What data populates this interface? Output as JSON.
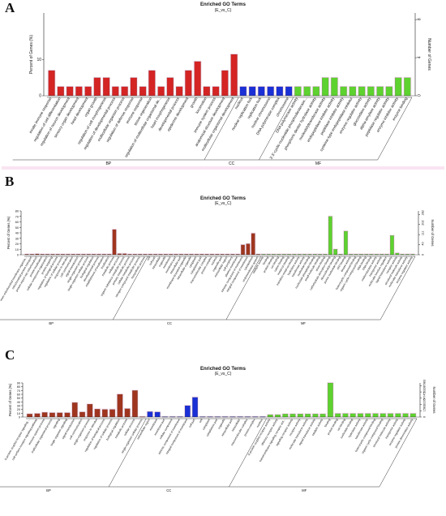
{
  "panels": [
    {
      "letter": "A",
      "title": "Enriched GO Terms",
      "subtitle": "(E_vs_C)"
    },
    {
      "letter": "B",
      "title": "Enriched GO Terms",
      "subtitle": "(E_vs_C)"
    },
    {
      "letter": "C",
      "title": "Enriched GO Terms",
      "subtitle": "(E_vs_C)"
    }
  ],
  "chart_data": [
    {
      "type": "bar",
      "title": "Enriched GO Terms",
      "subtitle": "(E_vs_C)",
      "ylabel": "Percent of Genes (%)",
      "y2label": "Number of Genes",
      "ylim": [
        0,
        23
      ],
      "yticks": [
        0,
        10
      ],
      "y2ticks": [
        0,
        4,
        8
      ],
      "colors": {
        "BP": "#d42424",
        "CC": "#1a2fd6",
        "MF": "#5ed22f"
      },
      "groups": [
        "BP",
        "CC",
        "MF"
      ],
      "categories": [
        "innate immune response",
        "regulation of cell differentiation",
        "regulation of neuron development",
        "sensory organ development",
        "head development",
        "organ growth",
        "regulation of cell morphogenesis",
        "regulation of developmental process",
        "multicellular organism process",
        "regulation of defense response",
        "immune response",
        "tissue regeneration",
        "regulation of multicellular organismal development",
        "heart morphogenesis",
        "developmental process",
        "epidermis development",
        "growth",
        "locomotion",
        "immune system process",
        "anatomical structure development",
        "multicellular organismal development",
        "nucleus",
        "nuclear replication fork",
        "replication fork",
        "nuclear chromosome",
        "DNA polymerase complex",
        "chromosome",
        "DNA polymerase activity",
        "3',5'-cyclic-nucleotide phosphodiesterase activity",
        "phosphoric diester hydrolase activity",
        "nucleotidyltransferase activity",
        "endopeptidase inhibitor activity",
        "peptidase inhibitor activity",
        "cysteine-type endopeptidase inhibitor",
        "enzyme regulator activity",
        "glucosidase activity",
        "alpha-amylase activity",
        "peptidase regulator activity",
        "enzyme inhibitor activity",
        "enzyme binding"
      ],
      "group_of": [
        "BP",
        "BP",
        "BP",
        "BP",
        "BP",
        "BP",
        "BP",
        "BP",
        "BP",
        "BP",
        "BP",
        "BP",
        "BP",
        "BP",
        "BP",
        "BP",
        "BP",
        "BP",
        "BP",
        "BP",
        "BP",
        "CC",
        "CC",
        "CC",
        "CC",
        "CC",
        "CC",
        "MF",
        "MF",
        "MF",
        "MF",
        "MF",
        "MF",
        "MF",
        "MF",
        "MF",
        "MF",
        "MF",
        "MF",
        "MF"
      ],
      "values": [
        7,
        2.5,
        2.5,
        2.5,
        2.5,
        5,
        5,
        2.5,
        2.5,
        5,
        2.5,
        7,
        2.5,
        5,
        2.5,
        7,
        9.5,
        2.5,
        2.5,
        7,
        11.5,
        2.5,
        2.5,
        2.5,
        2.5,
        2.5,
        2.5,
        2.5,
        2.5,
        2.5,
        5,
        5,
        2.5,
        2.5,
        2.5,
        2.5,
        2.5,
        2.5,
        5,
        5
      ]
    },
    {
      "type": "bar",
      "title": "Enriched GO Terms",
      "subtitle": "(E_vs_C)",
      "ylabel": "Percent of Genes (%)",
      "y2label": "Number of Genes",
      "ylim": [
        0,
        80
      ],
      "yticks": [
        0,
        10,
        20,
        30,
        40,
        50,
        60,
        70,
        80
      ],
      "y2ticks": [
        0,
        40,
        111,
        202,
        282
      ],
      "colors": {
        "BP": "#a0351f",
        "CC": "#a0351f",
        "MF": "#5ed22f"
      },
      "groups": [
        "BP",
        "CC",
        "MF"
      ],
      "categories": [
        "inner mitochondrial membrane organization",
        "mitochondrial protein transport",
        "protein import into mitochondrion",
        "protein localization",
        "cellular component organization",
        "protein targeting",
        "regulation of biological process",
        "regulation of cellular process",
        "response to stimulus",
        "cell communication",
        "signal transduction",
        "single-organism process",
        "single-organism cellular process",
        "biological regulation",
        "developmental process",
        "establishment of localization",
        "localization",
        "metabolic process",
        "cellular process",
        "organic substance metabolic process",
        "primary metabolic process",
        "cellular metabolic process",
        "nitrogen compound metabolic process",
        "biosynthetic process",
        "cell",
        "cell part",
        "intracellular",
        "organelle",
        "membrane",
        "membrane part",
        "intracellular part",
        "membrane-bounded organelle",
        "intracellular organelle",
        "cytoplasm",
        "cytoplasmic part",
        "macromolecular complex",
        "protein complex",
        "nucleus",
        "organelle part",
        "extracellular region",
        "cell periphery",
        "plasma membrane",
        "intrinsic component of membrane",
        "integral component of membrane",
        "cytoskeleton",
        "endomembrane system",
        "catalytic activity",
        "binding",
        "protein binding",
        "ion binding",
        "cation binding",
        "metal ion binding",
        "transition metal ion binding",
        "hydrolase activity",
        "transferase activity",
        "nucleotide binding",
        "nucleoside phosphate binding",
        "small molecule binding",
        "anion binding",
        "carbohydrate derivative binding",
        "ribonucleotide binding",
        "purine nucleotide binding",
        "ATP binding",
        "kinase activity",
        "heterocyclic compound binding",
        "organic cyclic compound binding",
        "RNA binding",
        "DNA binding",
        "oxidoreductase activity",
        "transporter activity",
        "molecular function regulator",
        "signal transducer activity",
        "receptor activity",
        "structural molecule activity",
        "molecular transducer activity",
        "enzyme regulator activity"
      ],
      "group_of": [
        "BP",
        "BP",
        "BP",
        "BP",
        "BP",
        "BP",
        "BP",
        "BP",
        "BP",
        "BP",
        "BP",
        "BP",
        "BP",
        "BP",
        "BP",
        "BP",
        "BP",
        "BP",
        "BP",
        "BP",
        "BP",
        "BP",
        "BP",
        "BP",
        "CC",
        "CC",
        "CC",
        "CC",
        "CC",
        "CC",
        "CC",
        "CC",
        "CC",
        "CC",
        "CC",
        "CC",
        "CC",
        "CC",
        "CC",
        "CC",
        "CC",
        "CC",
        "CC",
        "CC",
        "CC",
        "CC",
        "MF",
        "MF",
        "MF",
        "MF",
        "MF",
        "MF",
        "MF",
        "MF",
        "MF",
        "MF",
        "MF",
        "MF",
        "MF",
        "MF",
        "MF",
        "MF",
        "MF",
        "MF",
        "MF",
        "MF",
        "MF",
        "MF",
        "MF",
        "MF",
        "MF",
        "MF",
        "MF",
        "MF",
        "MF",
        "MF"
      ],
      "values": [
        1,
        1,
        1.5,
        1,
        1,
        1,
        1,
        1,
        1,
        1,
        1,
        1,
        1,
        1,
        1,
        1,
        1,
        46,
        2,
        2,
        1,
        1,
        1,
        1,
        1,
        1,
        1,
        1,
        1,
        1,
        1,
        1,
        1,
        1,
        1,
        1,
        1,
        1,
        1,
        1,
        1,
        1,
        18,
        20,
        39,
        1,
        1,
        1,
        1,
        1,
        1,
        1,
        1,
        1,
        1,
        1,
        1,
        1,
        1,
        70,
        10,
        1,
        43,
        1,
        1,
        1,
        1,
        1,
        1,
        1,
        1,
        35,
        3,
        1,
        1,
        1
      ],
      "cc_bars_note": ""
    },
    {
      "type": "bar",
      "title": "Enriched GO Terms",
      "subtitle": "(E_vs_C)",
      "ylabel": "Percent of Genes (%)",
      "y2label": "Number of Genes",
      "ylim": [
        0,
        90
      ],
      "yticks": [
        0,
        10,
        20,
        30,
        40,
        50,
        60,
        70,
        80,
        90
      ],
      "y2ticks": [
        0,
        1583,
        3165,
        4745,
        6328,
        7983
      ],
      "colors": {
        "BP": "#a0351f",
        "CC": "#1a2fd6",
        "MF": "#5ed22f"
      },
      "groups": [
        "BP",
        "CC",
        "MF"
      ],
      "categories": [
        "G-protein coupled receptor signaling pathway",
        "cell surface receptor signaling pathway",
        "immune system process",
        "multicellular organismal process",
        "signaling",
        "single organism signaling",
        "signal transduction",
        "cell communication",
        "single-organism process",
        "response to stimulus",
        "regulation of biological process",
        "regulation of cellular process",
        "biological regulation",
        "metabolic process",
        "cellular process",
        "single-organism cellular process",
        "extracellular region",
        "membrane",
        "membrane part",
        "cellular component",
        "intrinsic component of membrane",
        "integral component of membrane",
        "cell part",
        "cell",
        "cytoplasm",
        "cytoplasmic part",
        "organelle",
        "intracellular part",
        "intracellular",
        "macromolecular complex",
        "protein complex",
        "nucleus",
        "G-protein coupled receptor activity",
        "olfactory receptor activity",
        "transmembrane signaling receptor activity",
        "signaling receptor activity",
        "receptor activity",
        "molecular transducer activity",
        "signal transducer activity",
        "catalytic activity",
        "binding",
        "protein binding",
        "ion binding",
        "nucleotide binding",
        "hydrolase activity",
        "transferase activity",
        "heterocyclic compound binding",
        "organic cyclic compound binding",
        "structural molecule activity",
        "transporter activity",
        "enzyme regulator activity",
        "protein dimerization activity"
      ],
      "group_of": [
        "BP",
        "BP",
        "BP",
        "BP",
        "BP",
        "BP",
        "BP",
        "BP",
        "BP",
        "BP",
        "BP",
        "BP",
        "BP",
        "BP",
        "BP",
        "BP",
        "CC",
        "CC",
        "CC",
        "CC",
        "CC",
        "CC",
        "CC",
        "CC",
        "CC",
        "CC",
        "CC",
        "CC",
        "CC",
        "CC",
        "CC",
        "CC",
        "MF",
        "MF",
        "MF",
        "MF",
        "MF",
        "MF",
        "MF",
        "MF",
        "MF",
        "MF",
        "MF",
        "MF",
        "MF",
        "MF",
        "MF",
        "MF",
        "MF",
        "MF",
        "MF",
        "MF"
      ],
      "values": [
        8,
        9,
        12,
        11,
        11,
        11,
        38,
        13,
        34,
        21,
        20,
        20,
        60,
        22,
        70,
        1,
        14,
        13,
        1,
        1,
        1,
        30,
        52,
        1,
        1,
        1,
        1,
        1,
        1,
        1,
        1,
        1,
        6,
        6,
        8,
        8,
        8,
        8,
        8,
        8,
        90,
        9,
        9,
        9,
        9,
        9,
        9,
        9,
        9,
        9,
        9,
        9
      ]
    }
  ]
}
